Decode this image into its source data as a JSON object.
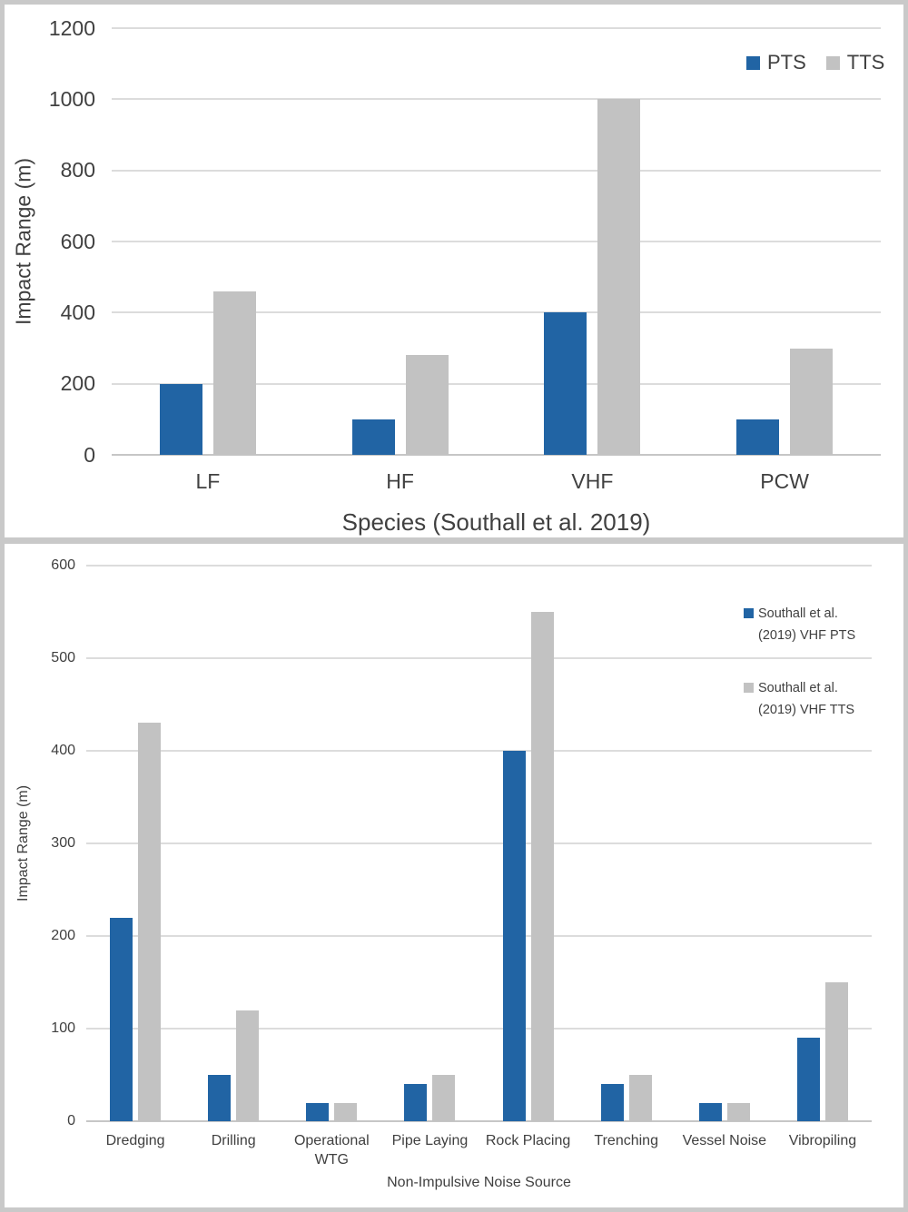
{
  "chart_data": [
    {
      "type": "bar",
      "title": "",
      "xlabel": "Species (Southall et al. 2019)",
      "ylabel": "Impact Range (m)",
      "categories": [
        "LF",
        "HF",
        "VHF",
        "PCW"
      ],
      "series": [
        {
          "name": "PTS",
          "color": "#2164a4",
          "values": [
            200,
            100,
            400,
            100
          ]
        },
        {
          "name": "TTS",
          "color": "#c2c2c2",
          "values": [
            460,
            280,
            1000,
            300
          ]
        }
      ],
      "ylim": [
        0,
        1200
      ],
      "yticks": [
        0,
        200,
        400,
        600,
        800,
        1000,
        1200
      ],
      "grid": true,
      "legend_position": "top-right"
    },
    {
      "type": "bar",
      "title": "",
      "xlabel": "Non-Impulsive Noise Source",
      "ylabel": "Impact Range (m)",
      "categories": [
        "Dredging",
        "Drilling",
        "Operational WTG",
        "Pipe Laying",
        "Rock Placing",
        "Trenching",
        "Vessel Noise",
        "Vibropiling"
      ],
      "series": [
        {
          "name": "Southall et al. (2019) VHF PTS",
          "color": "#2164a4",
          "values": [
            220,
            50,
            20,
            40,
            400,
            40,
            20,
            90
          ]
        },
        {
          "name": "Southall et al. (2019) VHF TTS",
          "color": "#c2c2c2",
          "values": [
            430,
            120,
            20,
            50,
            550,
            50,
            20,
            150
          ]
        }
      ],
      "ylim": [
        0,
        600
      ],
      "yticks": [
        0,
        100,
        200,
        300,
        400,
        500,
        600
      ],
      "grid": true,
      "legend_position": "right"
    }
  ]
}
